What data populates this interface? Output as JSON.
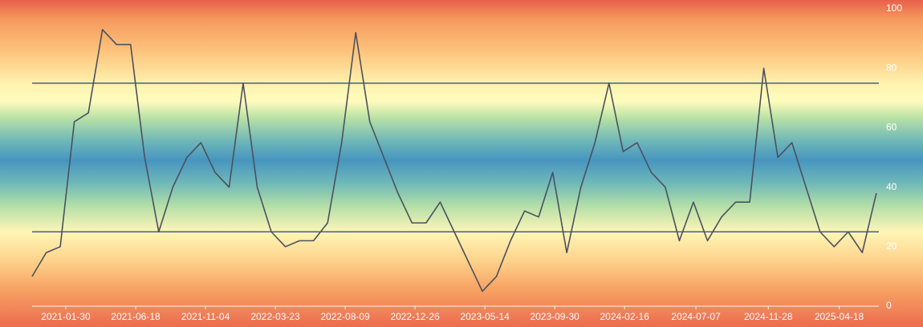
{
  "chart_data": {
    "type": "line",
    "x": [
      "2020-11-24",
      "2020-12-22",
      "2021-01-19",
      "2021-02-16",
      "2021-03-16",
      "2021-04-13",
      "2021-05-11",
      "2021-06-08",
      "2021-07-06",
      "2021-08-03",
      "2021-08-31",
      "2021-09-28",
      "2021-10-26",
      "2021-11-23",
      "2021-12-21",
      "2022-01-18",
      "2022-02-15",
      "2022-03-15",
      "2022-04-12",
      "2022-05-10",
      "2022-06-07",
      "2022-07-05",
      "2022-08-02",
      "2022-08-30",
      "2022-09-27",
      "2022-10-25",
      "2022-11-22",
      "2022-12-20",
      "2023-01-17",
      "2023-02-14",
      "2023-03-14",
      "2023-04-11",
      "2023-05-09",
      "2023-06-06",
      "2023-07-04",
      "2023-08-01",
      "2023-08-29",
      "2023-09-26",
      "2023-10-24",
      "2023-11-21",
      "2023-12-19",
      "2024-01-16",
      "2024-02-13",
      "2024-03-12",
      "2024-04-09",
      "2024-05-07",
      "2024-06-04",
      "2024-07-02",
      "2024-07-30",
      "2024-08-27",
      "2024-09-24",
      "2024-10-22",
      "2024-11-19",
      "2024-12-17",
      "2025-01-14",
      "2025-02-11",
      "2025-03-11",
      "2025-04-08",
      "2025-05-06",
      "2025-06-03",
      "2025-07-01"
    ],
    "series": [
      {
        "color": "#4b505e",
        "values": [
          10,
          18,
          20,
          62,
          65,
          93,
          88,
          88,
          50,
          25,
          40,
          50,
          55,
          45,
          40,
          75,
          40,
          25,
          20,
          22,
          22,
          28,
          55,
          92,
          62,
          50,
          38,
          28,
          28,
          35,
          25,
          15,
          5,
          10,
          22,
          32,
          30,
          45,
          18,
          40,
          55,
          75,
          52,
          55,
          45,
          40,
          22,
          35,
          22,
          30,
          35,
          35,
          80,
          50,
          55,
          40,
          25,
          20,
          25,
          18,
          38
        ]
      }
    ],
    "xlim": [
      "2020-11-24",
      "2025-07-06"
    ],
    "xticks": [
      "2021-01-30",
      "2021-06-18",
      "2021-11-04",
      "2022-03-23",
      "2022-08-09",
      "2022-12-26",
      "2023-05-14",
      "2023-09-30",
      "2024-02-16",
      "2024-07-07",
      "2024-11-28",
      "2025-04-18"
    ],
    "ylim": [
      0,
      100
    ],
    "yticks": [
      0,
      20,
      40,
      60,
      80,
      100
    ],
    "hlines": [
      25,
      75
    ],
    "hline_color": "#3d5f8c"
  }
}
